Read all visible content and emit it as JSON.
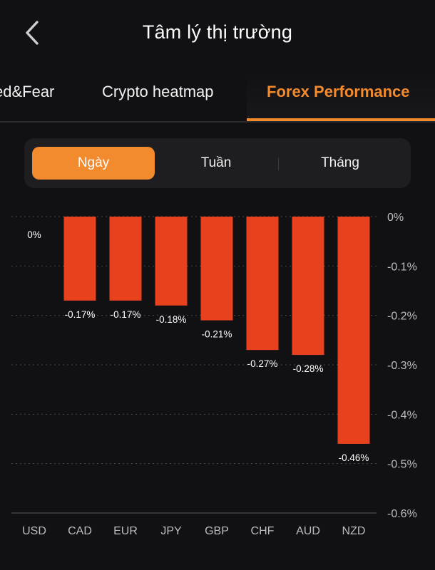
{
  "header": {
    "title": "Tâm lý thị trường"
  },
  "tabs": [
    {
      "label": "ed&Fear"
    },
    {
      "label": "Crypto heatmap"
    },
    {
      "label": "Forex Performance"
    }
  ],
  "segment": {
    "options": [
      "Ngày",
      "Tuần",
      "Tháng"
    ],
    "selected": "Ngày"
  },
  "colors": {
    "accent": "#f28a2e",
    "bar": "#e8411e",
    "background": "#111113"
  },
  "icons": {
    "back": "chevron-left-icon"
  },
  "chart_data": {
    "type": "bar",
    "categories": [
      "USD",
      "CAD",
      "EUR",
      "JPY",
      "GBP",
      "CHF",
      "AUD",
      "NZD"
    ],
    "values": [
      0,
      -0.17,
      -0.17,
      -0.18,
      -0.21,
      -0.27,
      -0.28,
      -0.46
    ],
    "data_labels": [
      "0%",
      "-0.17%",
      "-0.17%",
      "-0.18%",
      "-0.21%",
      "-0.27%",
      "-0.28%",
      "-0.46%"
    ],
    "yticks": [
      0,
      -0.1,
      -0.2,
      -0.3,
      -0.4,
      -0.5,
      -0.6
    ],
    "ytick_labels": [
      "0%",
      "-0.1%",
      "-0.2%",
      "-0.3%",
      "-0.4%",
      "-0.5%",
      "-0.6%"
    ],
    "ylim": [
      -0.6,
      0
    ],
    "y_axis_side": "right",
    "grid": true,
    "title": "",
    "xlabel": "",
    "ylabel": ""
  }
}
